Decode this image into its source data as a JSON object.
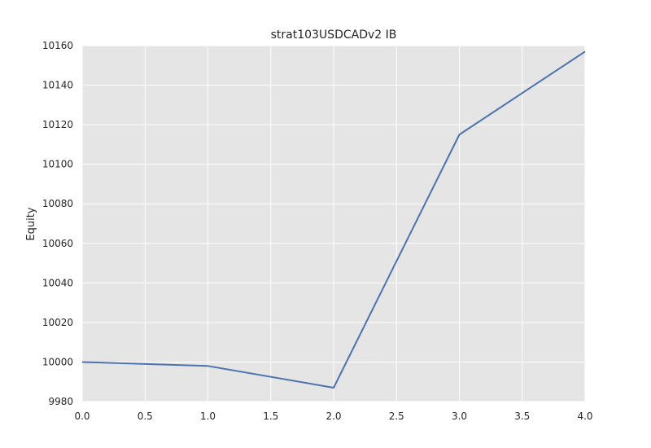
{
  "chart_data": {
    "type": "line",
    "title": "strat103USDCADv2 IB",
    "xlabel": "",
    "ylabel": "Equity",
    "x": [
      0,
      1,
      2,
      3,
      4
    ],
    "series": [
      {
        "values": [
          10000,
          9998,
          9987,
          10115,
          10157
        ]
      }
    ],
    "xlim": [
      0,
      4
    ],
    "ylim": [
      9980,
      10160
    ],
    "xticks": [
      0,
      0.5,
      1,
      1.5,
      2,
      2.5,
      3,
      3.5,
      4
    ],
    "xtick_labels": [
      "0.0",
      "0.5",
      "1.0",
      "1.5",
      "2.0",
      "2.5",
      "3.0",
      "3.5",
      "4.0"
    ],
    "yticks": [
      9980,
      10000,
      10020,
      10040,
      10060,
      10080,
      10100,
      10120,
      10140,
      10160
    ],
    "ytick_labels": [
      "9980",
      "10000",
      "10020",
      "10040",
      "10060",
      "10080",
      "10100",
      "10120",
      "10140",
      "10160"
    ],
    "grid": true,
    "colors": {
      "background": "#e5e5e5",
      "grid": "#ffffff",
      "line": "#4c72b0"
    }
  }
}
